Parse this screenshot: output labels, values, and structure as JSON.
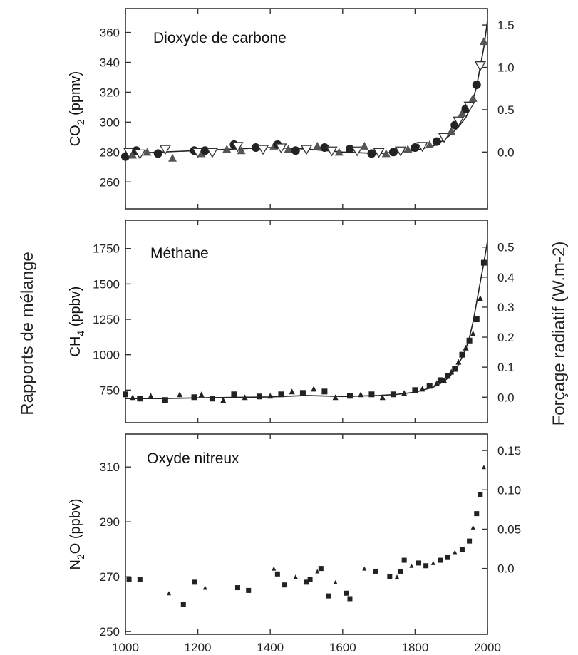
{
  "figure": {
    "left_label": "Rapports de mélange",
    "right_label": "Forçage radiatif (W.m-2)"
  },
  "chart_data": [
    {
      "type": "scatter",
      "title": "Dioxyde de carbone",
      "xlabel": "",
      "ylabel": "CO2 (ppmv)",
      "ylabel_main": "CO",
      "ylabel_sub": "2",
      "ylabel_tail": " (ppmv)",
      "xlim": [
        1000,
        2000
      ],
      "ylim": [
        242,
        376
      ],
      "yticks": [
        260,
        280,
        300,
        320,
        340,
        360
      ],
      "right_axis": {
        "label": "Forçage radiatif (W.m-2)",
        "ticks": [
          0.0,
          0.5,
          1.0,
          1.5
        ],
        "tick_labels": [
          "0.0",
          "0.5",
          "1.0",
          "1.5"
        ],
        "ref": [
          [
            0.0,
            280
          ],
          [
            1.5,
            365
          ]
        ]
      },
      "x": [
        1000,
        1010,
        1020,
        1030,
        1040,
        1060,
        1090,
        1110,
        1130,
        1190,
        1200,
        1210,
        1220,
        1240,
        1280,
        1300,
        1310,
        1320,
        1360,
        1380,
        1410,
        1420,
        1430,
        1450,
        1470,
        1500,
        1530,
        1550,
        1570,
        1590,
        1620,
        1640,
        1660,
        1680,
        1700,
        1720,
        1740,
        1760,
        1780,
        1800,
        1820,
        1840,
        1860,
        1880,
        1900,
        1910,
        1920,
        1930,
        1940,
        1950,
        1960,
        1970,
        1980,
        1990
      ],
      "values": [
        277,
        280,
        278,
        281,
        279,
        280,
        279,
        282,
        276,
        281,
        280,
        279,
        281,
        280,
        282,
        285,
        284,
        281,
        283,
        282,
        284,
        285,
        283,
        282,
        281,
        282,
        284,
        283,
        281,
        280,
        282,
        281,
        284,
        279,
        280,
        279,
        280,
        281,
        282,
        283,
        284,
        285,
        287,
        290,
        294,
        298,
        301,
        306,
        309,
        311,
        316,
        325,
        338,
        354
      ],
      "series_line": {
        "x": [
          1000,
          1100,
          1200,
          1300,
          1400,
          1500,
          1600,
          1700,
          1750,
          1800,
          1850,
          1880,
          1900,
          1920,
          1940,
          1950,
          1960,
          1970,
          1980,
          1990,
          2000
        ],
        "values": [
          279,
          280,
          281,
          282,
          283,
          282,
          280,
          279,
          280,
          281,
          284,
          288,
          292,
          297,
          303,
          308,
          315,
          324,
          337,
          350,
          368
        ]
      }
    },
    {
      "type": "scatter",
      "title": "Méthane",
      "xlabel": "",
      "ylabel": "CH4 (ppbv)",
      "ylabel_main": "CH",
      "ylabel_sub": "4",
      "ylabel_tail": " (ppbv)",
      "xlim": [
        1000,
        2000
      ],
      "ylim": [
        520,
        1950
      ],
      "yticks": [
        750,
        1000,
        1250,
        1500,
        1750
      ],
      "right_axis": {
        "label": "Forçage radiatif (W.m-2)",
        "ticks": [
          0.0,
          0.1,
          0.2,
          0.3,
          0.4,
          0.5
        ],
        "tick_labels": [
          "0.0",
          "0.1",
          "0.2",
          "0.3",
          "0.4",
          "0.5"
        ],
        "ref": [
          [
            0.0,
            700
          ],
          [
            0.5,
            1760
          ]
        ]
      },
      "x": [
        1000,
        1020,
        1040,
        1070,
        1110,
        1150,
        1190,
        1210,
        1240,
        1270,
        1300,
        1330,
        1370,
        1400,
        1430,
        1460,
        1490,
        1520,
        1550,
        1580,
        1620,
        1650,
        1680,
        1710,
        1740,
        1770,
        1800,
        1820,
        1840,
        1860,
        1870,
        1880,
        1890,
        1900,
        1910,
        1920,
        1930,
        1940,
        1950,
        1960,
        1970,
        1980,
        1990
      ],
      "values": [
        720,
        700,
        690,
        710,
        680,
        720,
        700,
        720,
        690,
        680,
        720,
        700,
        705,
        710,
        720,
        740,
        730,
        760,
        740,
        700,
        710,
        720,
        720,
        700,
        720,
        730,
        750,
        760,
        780,
        800,
        820,
        820,
        850,
        880,
        900,
        950,
        1000,
        1050,
        1100,
        1150,
        1250,
        1400,
        1650
      ],
      "series_line": {
        "x": [
          1000,
          1100,
          1200,
          1300,
          1400,
          1500,
          1600,
          1700,
          1750,
          1800,
          1850,
          1880,
          1900,
          1920,
          1940,
          1950,
          1960,
          1970,
          1980,
          1990,
          2000
        ],
        "values": [
          690,
          690,
          695,
          698,
          702,
          712,
          705,
          712,
          720,
          735,
          770,
          810,
          860,
          930,
          1040,
          1120,
          1230,
          1370,
          1510,
          1650,
          1800
        ]
      }
    },
    {
      "type": "scatter",
      "title": "Oxyde nitreux",
      "xlabel": "",
      "ylabel": "N2O (ppbv)",
      "ylabel_main": "N",
      "ylabel_sub": "2",
      "ylabel_tail": "O (ppbv)",
      "xlim": [
        1000,
        2000
      ],
      "ylim": [
        249,
        322
      ],
      "yticks": [
        250,
        270,
        290,
        310
      ],
      "right_axis": {
        "label": "Forçage radiatif (W.m-2)",
        "ticks": [
          0.0,
          0.05,
          0.1,
          0.15
        ],
        "tick_labels": [
          "0.0",
          "0.05",
          "0.10",
          "0.15"
        ],
        "ref": [
          [
            0.0,
            273
          ],
          [
            0.15,
            316
          ]
        ]
      },
      "x_ticks": [
        1000,
        1200,
        1400,
        1600,
        1800,
        2000
      ],
      "x_tick_labels": [
        "1000",
        "1200",
        "1400",
        "1600",
        "1800",
        "2000"
      ],
      "x": [
        1010,
        1040,
        1120,
        1160,
        1190,
        1220,
        1310,
        1340,
        1410,
        1420,
        1440,
        1470,
        1500,
        1510,
        1530,
        1540,
        1560,
        1580,
        1610,
        1620,
        1660,
        1690,
        1730,
        1750,
        1760,
        1770,
        1790,
        1810,
        1830,
        1850,
        1870,
        1890,
        1910,
        1930,
        1950,
        1960,
        1970,
        1980,
        1990
      ],
      "values": [
        269,
        269,
        264,
        260,
        268,
        266,
        266,
        265,
        273,
        271,
        267,
        270,
        268,
        269,
        272,
        273,
        263,
        268,
        264,
        262,
        273,
        272,
        270,
        270,
        272,
        276,
        274,
        275,
        274,
        275,
        276,
        277,
        279,
        280,
        283,
        288,
        293,
        300,
        310
      ],
      "series_line": null
    }
  ]
}
